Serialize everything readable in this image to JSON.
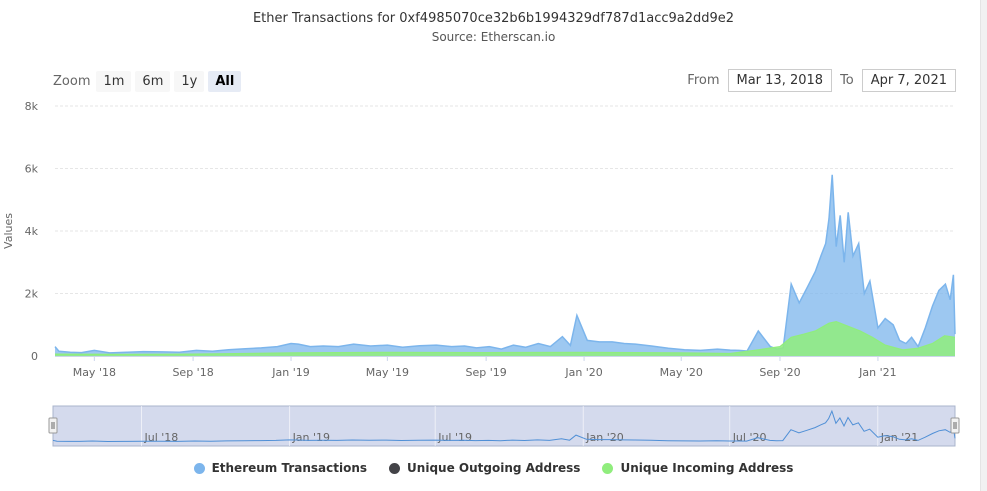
{
  "header": {
    "title": "Ether Transactions for 0xf4985070ce32b6b1994329df787d1acc9a2dd9e2",
    "subtitle": "Source: Etherscan.io"
  },
  "zoom": {
    "label": "Zoom",
    "buttons": [
      "1m",
      "6m",
      "1y",
      "All"
    ],
    "active": "All"
  },
  "range": {
    "from_label": "From",
    "from_value": "Mar 13, 2018",
    "to_label": "To",
    "to_value": "Apr 7, 2021"
  },
  "legend": [
    {
      "name": "Ethereum Transactions",
      "color": "#7cb5ec"
    },
    {
      "name": "Unique Outgoing Address",
      "color": "#434348"
    },
    {
      "name": "Unique Incoming Address",
      "color": "#90ed7d"
    }
  ],
  "chart_data": {
    "type": "area",
    "title": "Ether Transactions for 0xf4985070ce32b6b1994329df787d1acc9a2dd9e2",
    "subtitle": "Source: Etherscan.io",
    "ylabel": "Values",
    "ylim": [
      0,
      8000
    ],
    "yticks": [
      "0",
      "2k",
      "4k",
      "6k",
      "8k"
    ],
    "xlim": [
      "2018-03-13",
      "2021-04-07"
    ],
    "xticks": [
      {
        "date": "2018-05-01",
        "label": "May '18"
      },
      {
        "date": "2018-09-01",
        "label": "Sep '18"
      },
      {
        "date": "2019-01-01",
        "label": "Jan '19"
      },
      {
        "date": "2019-05-01",
        "label": "May '19"
      },
      {
        "date": "2019-09-01",
        "label": "Sep '19"
      },
      {
        "date": "2020-01-01",
        "label": "Jan '20"
      },
      {
        "date": "2020-05-01",
        "label": "May '20"
      },
      {
        "date": "2020-09-01",
        "label": "Sep '20"
      },
      {
        "date": "2021-01-01",
        "label": "Jan '21"
      }
    ],
    "navigator_ticks": [
      {
        "date": "2018-07-01",
        "label": "Jul '18"
      },
      {
        "date": "2019-01-01",
        "label": "Jan '19"
      },
      {
        "date": "2019-07-01",
        "label": "Jul '19"
      },
      {
        "date": "2020-01-01",
        "label": "Jan '20"
      },
      {
        "date": "2020-07-01",
        "label": "Jul '20"
      },
      {
        "date": "2021-01-01",
        "label": "Jan '21"
      }
    ],
    "grid": true,
    "legend_position": "bottom",
    "series": [
      {
        "name": "Ethereum Transactions",
        "color": "#7cb5ec",
        "x": [
          "2018-03-13",
          "2018-03-18",
          "2018-04-01",
          "2018-04-15",
          "2018-05-01",
          "2018-05-20",
          "2018-06-10",
          "2018-07-01",
          "2018-07-25",
          "2018-08-15",
          "2018-09-05",
          "2018-09-25",
          "2018-10-15",
          "2018-11-05",
          "2018-11-25",
          "2018-12-15",
          "2019-01-01",
          "2019-01-10",
          "2019-01-25",
          "2019-02-10",
          "2019-03-01",
          "2019-03-20",
          "2019-04-10",
          "2019-05-01",
          "2019-05-20",
          "2019-06-10",
          "2019-07-01",
          "2019-07-20",
          "2019-08-05",
          "2019-08-20",
          "2019-09-05",
          "2019-09-20",
          "2019-10-05",
          "2019-10-20",
          "2019-11-05",
          "2019-11-20",
          "2019-12-05",
          "2019-12-15",
          "2019-12-23",
          "2020-01-05",
          "2020-01-20",
          "2020-02-05",
          "2020-02-20",
          "2020-03-05",
          "2020-03-25",
          "2020-04-15",
          "2020-05-05",
          "2020-05-25",
          "2020-06-15",
          "2020-07-01",
          "2020-07-12",
          "2020-07-22",
          "2020-08-05",
          "2020-08-20",
          "2020-08-28",
          "2020-09-05",
          "2020-09-15",
          "2020-09-25",
          "2020-10-05",
          "2020-10-15",
          "2020-10-22",
          "2020-10-28",
          "2020-11-01",
          "2020-11-05",
          "2020-11-10",
          "2020-11-15",
          "2020-11-20",
          "2020-11-25",
          "2020-12-01",
          "2020-12-08",
          "2020-12-15",
          "2020-12-22",
          "2021-01-01",
          "2021-01-10",
          "2021-01-20",
          "2021-01-28",
          "2021-02-05",
          "2021-02-12",
          "2021-02-20",
          "2021-03-01",
          "2021-03-10",
          "2021-03-18",
          "2021-03-26",
          "2021-04-01",
          "2021-04-05",
          "2021-04-07"
        ],
        "values": [
          300,
          150,
          120,
          110,
          180,
          100,
          120,
          140,
          130,
          120,
          180,
          150,
          200,
          230,
          260,
          300,
          400,
          380,
          300,
          320,
          300,
          380,
          320,
          350,
          280,
          330,
          350,
          300,
          320,
          260,
          300,
          220,
          350,
          280,
          400,
          300,
          620,
          340,
          1300,
          500,
          450,
          450,
          400,
          380,
          320,
          250,
          200,
          180,
          220,
          190,
          180,
          160,
          800,
          300,
          220,
          260,
          2300,
          1700,
          2200,
          2700,
          3200,
          3600,
          4400,
          5800,
          3500,
          4500,
          3000,
          4600,
          3200,
          3600,
          2000,
          2400,
          900,
          1200,
          1000,
          500,
          400,
          600,
          300,
          900,
          1600,
          2100,
          2300,
          1800,
          2600,
          700
        ]
      },
      {
        "name": "Unique Outgoing Address",
        "color": "#434348",
        "x": [
          "2018-03-13",
          "2021-04-07"
        ],
        "values": [
          0,
          0
        ]
      },
      {
        "name": "Unique Incoming Address",
        "color": "#90ed7d",
        "x": [
          "2018-03-13",
          "2018-06-01",
          "2018-09-01",
          "2019-01-01",
          "2019-05-01",
          "2019-09-01",
          "2020-01-01",
          "2020-05-01",
          "2020-07-01",
          "2020-08-05",
          "2020-09-01",
          "2020-09-15",
          "2020-10-01",
          "2020-10-15",
          "2020-11-01",
          "2020-11-10",
          "2020-11-25",
          "2020-12-10",
          "2020-12-25",
          "2021-01-10",
          "2021-02-01",
          "2021-02-20",
          "2021-03-10",
          "2021-03-25",
          "2021-04-07"
        ],
        "values": [
          60,
          50,
          60,
          100,
          120,
          110,
          120,
          100,
          80,
          200,
          300,
          600,
          700,
          800,
          1050,
          1100,
          950,
          800,
          600,
          350,
          200,
          250,
          400,
          650,
          600
        ]
      }
    ]
  }
}
